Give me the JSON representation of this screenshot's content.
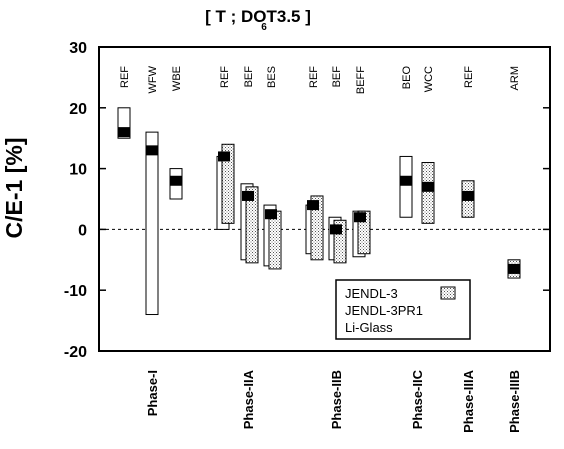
{
  "chart_data": {
    "type": "bar",
    "title": "[ T ; DOT3.5 ]",
    "title_subscript": "6",
    "ylabel": "C/E-1 [%]",
    "ylim": [
      -20,
      30
    ],
    "yticks": [
      -20,
      -10,
      0,
      10,
      20,
      30
    ],
    "zero_line": "dashed",
    "grid": false,
    "legend_position": "bottom-right inside plot",
    "legend": [
      {
        "label": "JENDL-3",
        "style": "stippled-box"
      },
      {
        "label": "JENDL-3PR1",
        "style": "black-marker"
      },
      {
        "label": "Li-Glass",
        "style": "open-box"
      }
    ],
    "top_labels": [
      "REF",
      "WFW",
      "WBE",
      "REF",
      "BEF",
      "BES",
      "REF",
      "BEF",
      "BEFF",
      "BEO",
      "WCC",
      "REF",
      "ARM"
    ],
    "phases": [
      "Phase-I",
      "Phase-IIA",
      "Phase-IIB",
      "Phase-IIC",
      "Phase-IIIA",
      "Phase-IIIB"
    ],
    "experiments": [
      {
        "label": "REF",
        "phase": "Phase-I",
        "x": 1,
        "li_glass": [
          15,
          20
        ],
        "jendl3": null,
        "jendl3pr1": 16
      },
      {
        "label": "WFW",
        "phase": "Phase-I",
        "x": 2,
        "li_glass": [
          -14,
          16
        ],
        "jendl3": null,
        "jendl3pr1": 13
      },
      {
        "label": "WBE",
        "phase": "Phase-I",
        "x": 3,
        "li_glass": [
          5,
          10
        ],
        "jendl3": null,
        "jendl3pr1": 8
      },
      {
        "label": "REF",
        "phase": "Phase-IIA",
        "x": 4,
        "li_glass": [
          0,
          12
        ],
        "jendl3": [
          1,
          14
        ],
        "jendl3pr1": 12
      },
      {
        "label": "BEF",
        "phase": "Phase-IIA",
        "x": 5,
        "li_glass": [
          -5,
          7.5
        ],
        "jendl3": [
          -5.5,
          7
        ],
        "jendl3pr1": 5.5
      },
      {
        "label": "BES",
        "phase": "Phase-IIA",
        "x": 6,
        "li_glass": [
          -6,
          4
        ],
        "jendl3": [
          -6.5,
          3
        ],
        "jendl3pr1": 2.5
      },
      {
        "label": "REF",
        "phase": "Phase-IIB",
        "x": 7,
        "li_glass": [
          -4,
          4
        ],
        "jendl3": [
          -5,
          5.5
        ],
        "jendl3pr1": 4
      },
      {
        "label": "BEF",
        "phase": "Phase-IIB",
        "x": 8,
        "li_glass": [
          -5,
          2
        ],
        "jendl3": [
          -5.5,
          1.5
        ],
        "jendl3pr1": 0
      },
      {
        "label": "BEFF",
        "phase": "Phase-IIB",
        "x": 9,
        "li_glass": [
          -4.5,
          3
        ],
        "jendl3": [
          -4,
          3
        ],
        "jendl3pr1": 2
      },
      {
        "label": "BEO",
        "phase": "Phase-IIC",
        "x": 10,
        "li_glass": [
          2,
          12
        ],
        "jendl3": null,
        "jendl3pr1": 8
      },
      {
        "label": "WCC",
        "phase": "Phase-IIC",
        "x": 11,
        "li_glass": null,
        "jendl3": [
          1,
          11
        ],
        "jendl3pr1": 7
      },
      {
        "label": "REF",
        "phase": "Phase-IIIA",
        "x": 12,
        "li_glass": null,
        "jendl3": [
          2,
          8
        ],
        "jendl3pr1": 5.5
      },
      {
        "label": "ARM",
        "phase": "Phase-IIIB",
        "x": 13,
        "li_glass": null,
        "jendl3": [
          -8,
          -5
        ],
        "jendl3pr1": -6.5
      }
    ]
  }
}
